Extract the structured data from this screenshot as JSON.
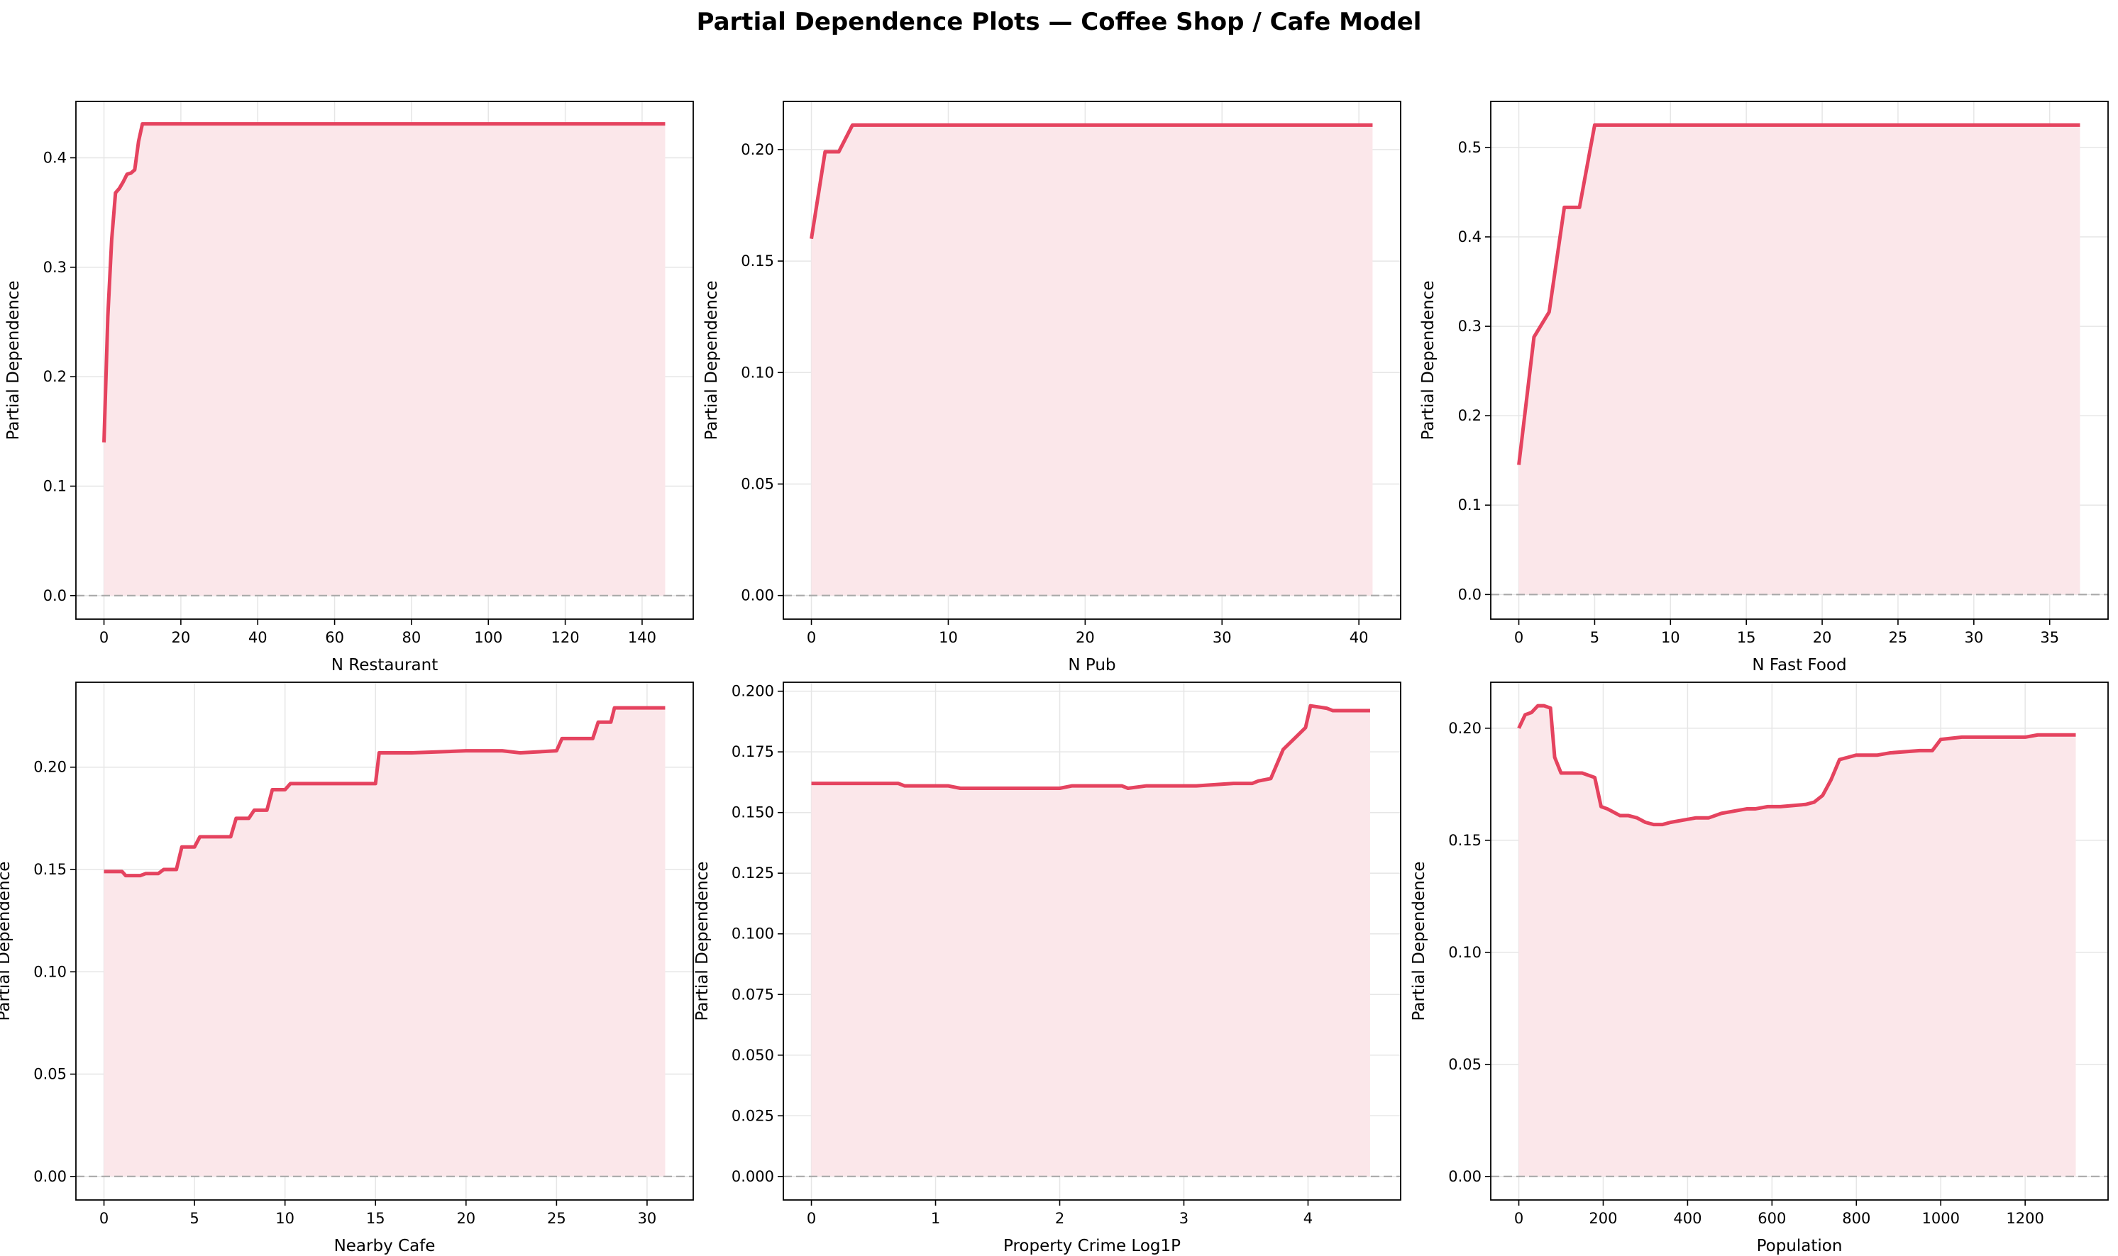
{
  "figure": {
    "title": "Partial Dependence Plots — Coffee Shop / Cafe Model"
  },
  "style": {
    "line_color": "#e5435f",
    "fill_color": "#fbe7ea",
    "grid_color": "#e6e6e6",
    "zero_line_color": "#a9a9a9"
  },
  "chart_data": [
    {
      "type": "line",
      "xlabel": "N Restaurant",
      "ylabel": "Partial Dependence",
      "xlim": [
        -7.3,
        153.3
      ],
      "ylim": [
        -0.0215,
        0.4515
      ],
      "xticks": [
        0,
        20,
        40,
        60,
        80,
        100,
        120,
        140
      ],
      "xtick_labels": [
        "0",
        "20",
        "40",
        "60",
        "80",
        "100",
        "120",
        "140"
      ],
      "yticks": [
        0.0,
        0.1,
        0.2,
        0.3,
        0.4
      ],
      "ytick_labels": [
        "0.0",
        "0.1",
        "0.2",
        "0.3",
        "0.4"
      ],
      "grid": true,
      "fill_to_zero": true,
      "zero_line": true,
      "x": [
        0,
        1,
        2,
        3,
        4,
        5,
        6,
        7,
        8,
        9,
        10,
        146
      ],
      "y": [
        0.14,
        0.255,
        0.325,
        0.368,
        0.372,
        0.378,
        0.385,
        0.386,
        0.389,
        0.415,
        0.431,
        0.431
      ]
    },
    {
      "type": "line",
      "xlabel": "N Pub",
      "ylabel": "Partial Dependence",
      "xlim": [
        -2.05,
        43.05
      ],
      "ylim": [
        -0.0106,
        0.2216
      ],
      "xticks": [
        0,
        10,
        20,
        30,
        40
      ],
      "xtick_labels": [
        "0",
        "10",
        "20",
        "30",
        "40"
      ],
      "yticks": [
        0.0,
        0.05,
        0.1,
        0.15,
        0.2
      ],
      "ytick_labels": [
        "0.00",
        "0.05",
        "0.10",
        "0.15",
        "0.20"
      ],
      "grid": true,
      "fill_to_zero": true,
      "zero_line": true,
      "x": [
        0,
        1,
        2,
        3,
        41
      ],
      "y": [
        0.16,
        0.199,
        0.199,
        0.211,
        0.211
      ]
    },
    {
      "type": "line",
      "xlabel": "N Fast Food",
      "ylabel": "Partial Dependence",
      "xlim": [
        -1.85,
        38.85
      ],
      "ylim": [
        -0.0275,
        0.5515
      ],
      "xticks": [
        0,
        5,
        10,
        15,
        20,
        25,
        30,
        35
      ],
      "xtick_labels": [
        "0",
        "5",
        "10",
        "15",
        "20",
        "25",
        "30",
        "35"
      ],
      "yticks": [
        0.0,
        0.1,
        0.2,
        0.3,
        0.4,
        0.5
      ],
      "ytick_labels": [
        "0.0",
        "0.1",
        "0.2",
        "0.3",
        "0.4",
        "0.5"
      ],
      "grid": true,
      "fill_to_zero": true,
      "zero_line": true,
      "x": [
        0,
        1,
        2,
        3,
        4,
        5,
        37
      ],
      "y": [
        0.145,
        0.288,
        0.316,
        0.433,
        0.433,
        0.525,
        0.525
      ]
    },
    {
      "type": "line",
      "xlabel": "Nearby Cafe",
      "ylabel": "Partial Dependence",
      "xlim": [
        -1.55,
        32.55
      ],
      "ylim": [
        -0.0115,
        0.2415
      ],
      "xticks": [
        0,
        5,
        10,
        15,
        20,
        25,
        30
      ],
      "xtick_labels": [
        "0",
        "5",
        "10",
        "15",
        "20",
        "25",
        "30"
      ],
      "yticks": [
        0.0,
        0.05,
        0.1,
        0.15,
        0.2
      ],
      "ytick_labels": [
        "0.00",
        "0.05",
        "0.10",
        "0.15",
        "0.20"
      ],
      "grid": true,
      "fill_to_zero": true,
      "zero_line": true,
      "x": [
        0,
        1,
        1.2,
        1.5,
        2,
        2.3,
        3,
        3.3,
        4,
        4.3,
        5,
        5.3,
        7,
        7.3,
        8,
        8.3,
        9,
        9.3,
        10,
        10.3,
        15,
        15.2,
        17,
        20,
        21,
        22,
        23,
        25,
        25.3,
        27,
        27.3,
        28,
        28.2,
        31
      ],
      "y": [
        0.149,
        0.149,
        0.147,
        0.147,
        0.147,
        0.148,
        0.148,
        0.15,
        0.15,
        0.161,
        0.161,
        0.166,
        0.166,
        0.175,
        0.175,
        0.179,
        0.179,
        0.189,
        0.189,
        0.192,
        0.192,
        0.207,
        0.207,
        0.208,
        0.208,
        0.208,
        0.207,
        0.208,
        0.214,
        0.214,
        0.222,
        0.222,
        0.229,
        0.229
      ]
    },
    {
      "type": "line",
      "xlabel": "Property Crime Log1P",
      "ylabel": "Partial Dependence",
      "xlim": [
        -0.226,
        4.746
      ],
      "ylim": [
        -0.0097,
        0.2037
      ],
      "xticks": [
        0,
        1,
        2,
        3,
        4
      ],
      "xtick_labels": [
        "0",
        "1",
        "2",
        "3",
        "4"
      ],
      "yticks": [
        0.0,
        0.025,
        0.05,
        0.075,
        0.1,
        0.125,
        0.15,
        0.175,
        0.2
      ],
      "ytick_labels": [
        "0.000",
        "0.025",
        "0.050",
        "0.075",
        "0.100",
        "0.125",
        "0.150",
        "0.175",
        "0.200"
      ],
      "grid": true,
      "fill_to_zero": true,
      "zero_line": true,
      "x": [
        0,
        0.7,
        0.75,
        1.1,
        1.2,
        1.3,
        1.4,
        2.0,
        2.1,
        2.5,
        2.55,
        2.7,
        3.1,
        3.4,
        3.55,
        3.6,
        3.7,
        3.8,
        3.9,
        3.98,
        4.02,
        4.15,
        4.2,
        4.5
      ],
      "y": [
        0.162,
        0.162,
        0.161,
        0.161,
        0.16,
        0.16,
        0.16,
        0.16,
        0.161,
        0.161,
        0.16,
        0.161,
        0.161,
        0.162,
        0.162,
        0.163,
        0.164,
        0.176,
        0.181,
        0.185,
        0.194,
        0.193,
        0.192,
        0.192
      ]
    },
    {
      "type": "line",
      "xlabel": "Population",
      "ylabel": "Partial Dependence",
      "xlim": [
        -66.5,
        1396.5
      ],
      "ylim": [
        -0.0105,
        0.2205
      ],
      "xticks": [
        0,
        200,
        400,
        600,
        800,
        1000,
        1200
      ],
      "xtick_labels": [
        "0",
        "200",
        "400",
        "600",
        "800",
        "1000",
        "1200"
      ],
      "yticks": [
        0.0,
        0.05,
        0.1,
        0.15,
        0.2
      ],
      "ytick_labels": [
        "0.00",
        "0.05",
        "0.10",
        "0.15",
        "0.20"
      ],
      "grid": true,
      "fill_to_zero": true,
      "zero_line": true,
      "x": [
        0,
        15,
        30,
        45,
        60,
        75,
        85,
        100,
        150,
        180,
        195,
        210,
        240,
        260,
        280,
        300,
        320,
        340,
        360,
        390,
        420,
        450,
        480,
        510,
        540,
        560,
        590,
        620,
        680,
        700,
        720,
        740,
        760,
        780,
        800,
        850,
        880,
        950,
        980,
        1000,
        1050,
        1200,
        1230,
        1320
      ],
      "y": [
        0.2,
        0.206,
        0.207,
        0.21,
        0.21,
        0.209,
        0.187,
        0.18,
        0.18,
        0.178,
        0.165,
        0.164,
        0.161,
        0.161,
        0.16,
        0.158,
        0.157,
        0.157,
        0.158,
        0.159,
        0.16,
        0.16,
        0.162,
        0.163,
        0.164,
        0.164,
        0.165,
        0.165,
        0.166,
        0.167,
        0.17,
        0.177,
        0.186,
        0.187,
        0.188,
        0.188,
        0.189,
        0.19,
        0.19,
        0.195,
        0.196,
        0.196,
        0.197,
        0.197
      ]
    }
  ]
}
